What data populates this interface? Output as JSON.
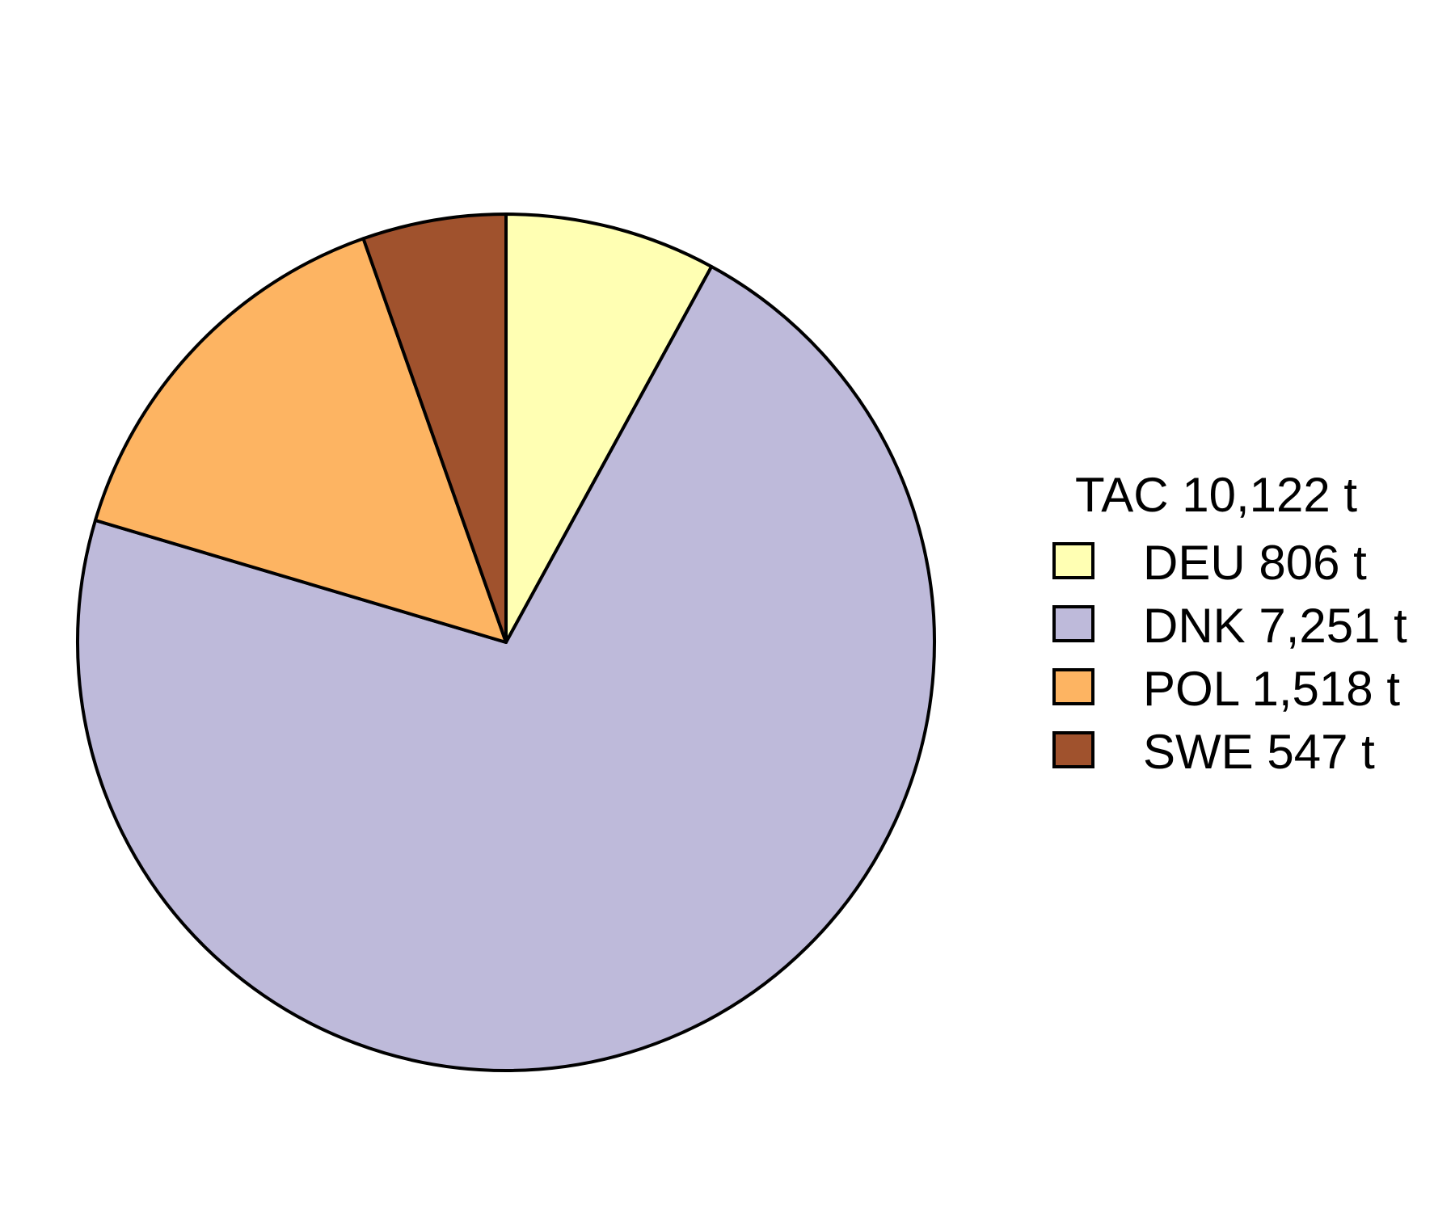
{
  "chart_data": {
    "type": "pie",
    "legend": {
      "title": "TAC 10,122 t",
      "placement": "right"
    },
    "slices": [
      {
        "category": "DEU",
        "value": 806,
        "label": "DEU 806 t",
        "color": "#FFFFB3"
      },
      {
        "category": "DNK",
        "value": 7251,
        "label": "DNK 7,251 t",
        "color": "#BEBADA"
      },
      {
        "category": "POL",
        "value": 1518,
        "label": "POL 1,518 t",
        "color": "#FDB462"
      },
      {
        "category": "SWE",
        "value": 547,
        "label": "SWE 547 t",
        "color": "#A0522D"
      }
    ],
    "total": 10122,
    "start_angle": "12 o'clock",
    "direction": "clockwise",
    "outline_color": "#000000"
  }
}
